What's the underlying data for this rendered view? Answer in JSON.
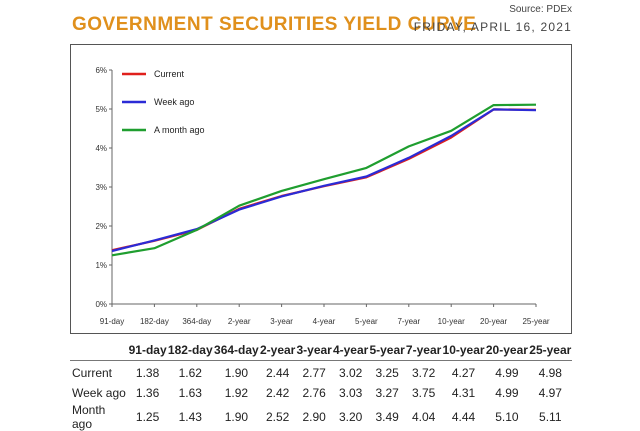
{
  "header": {
    "source": "Source: PDEx",
    "title": "GOVERNMENT SECURITIES YIELD CURVE",
    "date": "FRIDAY, APRIL 16, 2021"
  },
  "chart_data": {
    "type": "line",
    "title": "GOVERNMENT SECURITIES YIELD CURVE",
    "categories": [
      "91-day",
      "182-day",
      "364-day",
      "2-year",
      "3-year",
      "4-year",
      "5-year",
      "7-year",
      "10-year",
      "20-year",
      "25-year"
    ],
    "y_ticks": [
      "0%",
      "1%",
      "2%",
      "3%",
      "4%",
      "5%",
      "6%"
    ],
    "ylim": [
      0,
      6
    ],
    "legend_position": "top-left",
    "series": [
      {
        "name": "Current",
        "color": "#e0201c",
        "values": [
          1.38,
          1.62,
          1.9,
          2.44,
          2.77,
          3.02,
          3.25,
          3.72,
          4.27,
          4.99,
          4.98
        ]
      },
      {
        "name": "Week ago",
        "color": "#2b2bd6",
        "values": [
          1.36,
          1.63,
          1.92,
          2.42,
          2.76,
          3.03,
          3.27,
          3.75,
          4.31,
          4.99,
          4.97
        ]
      },
      {
        "name": "A month ago",
        "color": "#1f9e2f",
        "values": [
          1.25,
          1.43,
          1.9,
          2.52,
          2.9,
          3.2,
          3.49,
          4.04,
          4.44,
          5.1,
          5.11
        ]
      }
    ]
  },
  "table": {
    "headers": [
      "91-day",
      "182-day",
      "364-day",
      "2-year",
      "3-year",
      "4-year",
      "5-year",
      "7-year",
      "10-year",
      "20-year",
      "25-year"
    ],
    "rows": [
      {
        "label": "Current",
        "values": [
          "1.38",
          "1.62",
          "1.90",
          "2.44",
          "2.77",
          "3.02",
          "3.25",
          "3.72",
          "4.27",
          "4.99",
          "4.98"
        ]
      },
      {
        "label": "Week ago",
        "values": [
          "1.36",
          "1.63",
          "1.92",
          "2.42",
          "2.76",
          "3.03",
          "3.27",
          "3.75",
          "4.31",
          "4.99",
          "4.97"
        ]
      },
      {
        "label": "Month ago",
        "values": [
          "1.25",
          "1.43",
          "1.90",
          "2.52",
          "2.90",
          "3.20",
          "3.49",
          "4.04",
          "4.44",
          "5.10",
          "5.11"
        ]
      }
    ]
  }
}
